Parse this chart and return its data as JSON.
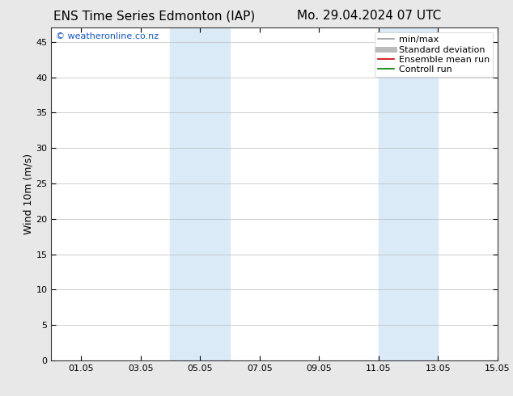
{
  "title_left": "ENS Time Series Edmonton (IAP)",
  "title_right": "Mo. 29.04.2024 07 UTC",
  "ylabel": "Wind 10m (m/s)",
  "xlim": [
    0,
    14.4
  ],
  "ylim": [
    0,
    47
  ],
  "yticks": [
    0,
    5,
    10,
    15,
    20,
    25,
    30,
    35,
    40,
    45
  ],
  "xtick_labels": [
    "01.05",
    "03.05",
    "05.05",
    "07.05",
    "09.05",
    "11.05",
    "13.05",
    "15.05"
  ],
  "xtick_positions": [
    1,
    3,
    5,
    7,
    9,
    11,
    13,
    15
  ],
  "shaded_bands": [
    {
      "x_start": 4.0,
      "x_end": 6.0
    },
    {
      "x_start": 11.0,
      "x_end": 13.0
    }
  ],
  "shaded_color": "#daeaf7",
  "bg_color": "#ffffff",
  "fig_bg_color": "#e8e8e8",
  "watermark_text": "© weatheronline.co.nz",
  "watermark_color": "#1155cc",
  "legend_items": [
    {
      "label": "min/max",
      "color": "#999999",
      "lw": 1.2
    },
    {
      "label": "Standard deviation",
      "color": "#bbbbbb",
      "lw": 5
    },
    {
      "label": "Ensemble mean run",
      "color": "#cc0000",
      "lw": 1.2
    },
    {
      "label": "Controll run",
      "color": "#007700",
      "lw": 1.2
    }
  ],
  "title_fontsize": 11,
  "axis_label_fontsize": 9,
  "tick_fontsize": 8,
  "legend_fontsize": 8,
  "watermark_fontsize": 8
}
